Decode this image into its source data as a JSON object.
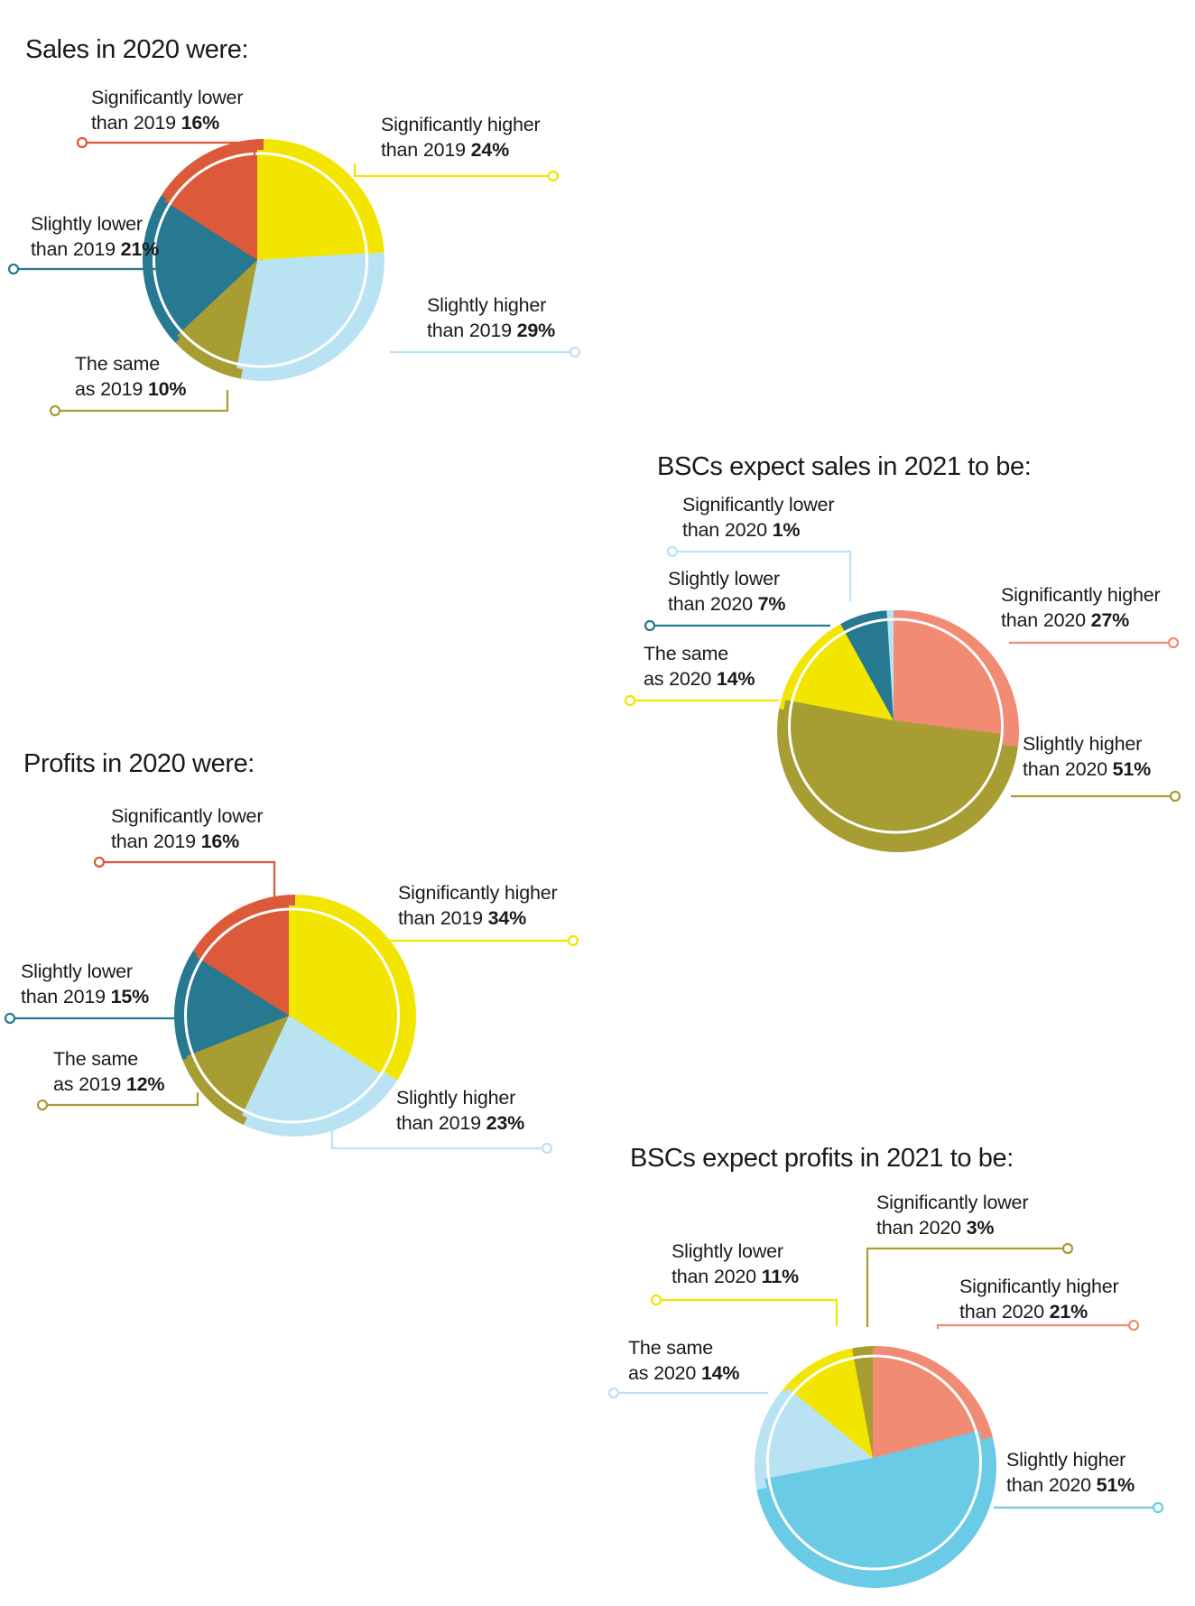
{
  "colors": {
    "red": "#dc5939",
    "salmon": "#f28b73",
    "dark_teal": "#277891",
    "olive": "#a89d33",
    "yellow": "#f2e600",
    "light_blue": "#b9e3f3",
    "sky_blue": "#69cbe5",
    "white": "#ffffff"
  },
  "chart_data": [
    {
      "type": "pie",
      "title": "Sales in 2020 were:",
      "slices": [
        {
          "line1": "Significantly higher",
          "line2_prefix": "than 2019",
          "value": 24,
          "pct_label": "24%",
          "color": "#f2e600"
        },
        {
          "line1": "Slightly higher",
          "line2_prefix": "than 2019",
          "value": 29,
          "pct_label": "29%",
          "color": "#b9e3f3"
        },
        {
          "line1": "The same",
          "line2_prefix": "as 2019",
          "value": 10,
          "pct_label": "10%",
          "color": "#a89d33"
        },
        {
          "line1": "Slightly lower",
          "line2_prefix": "than 2019",
          "value": 21,
          "pct_label": "21%",
          "color": "#277891"
        },
        {
          "line1": "Significantly lower",
          "line2_prefix": "than 2019",
          "value": 16,
          "pct_label": "16%",
          "color": "#dc5939"
        }
      ]
    },
    {
      "type": "pie",
      "title": "BSCs expect sales in 2021 to be:",
      "slices": [
        {
          "line1": "Significantly higher",
          "line2_prefix": "than 2020",
          "value": 27,
          "pct_label": "27%",
          "color": "#f28b73"
        },
        {
          "line1": "Slightly higher",
          "line2_prefix": "than 2020",
          "value": 51,
          "pct_label": "51%",
          "color": "#a89d33"
        },
        {
          "line1": "The same",
          "line2_prefix": "as 2020",
          "value": 14,
          "pct_label": "14%",
          "color": "#f2e600"
        },
        {
          "line1": "Slightly lower",
          "line2_prefix": "than 2020",
          "value": 7,
          "pct_label": "7%",
          "color": "#277891"
        },
        {
          "line1": "Significantly lower",
          "line2_prefix": "than 2020",
          "value": 1,
          "pct_label": "1%",
          "color": "#b9e3f3"
        }
      ]
    },
    {
      "type": "pie",
      "title": "Profits in 2020 were:",
      "slices": [
        {
          "line1": "Significantly higher",
          "line2_prefix": "than 2019",
          "value": 34,
          "pct_label": "34%",
          "color": "#f2e600"
        },
        {
          "line1": "Slightly higher",
          "line2_prefix": "than 2019",
          "value": 23,
          "pct_label": "23%",
          "color": "#b9e3f3"
        },
        {
          "line1": "The same",
          "line2_prefix": "as 2019",
          "value": 12,
          "pct_label": "12%",
          "color": "#a89d33"
        },
        {
          "line1": "Slightly lower",
          "line2_prefix": "than 2019",
          "value": 15,
          "pct_label": "15%",
          "color": "#277891"
        },
        {
          "line1": "Significantly lower",
          "line2_prefix": "than 2019",
          "value": 16,
          "pct_label": "16%",
          "color": "#dc5939"
        }
      ]
    },
    {
      "type": "pie",
      "title": "BSCs expect profits in 2021 to be:",
      "slices": [
        {
          "line1": "Significantly higher",
          "line2_prefix": "than 2020",
          "value": 21,
          "pct_label": "21%",
          "color": "#f28b73"
        },
        {
          "line1": "Slightly higher",
          "line2_prefix": "than 2020",
          "value": 51,
          "pct_label": "51%",
          "color": "#69cbe5"
        },
        {
          "line1": "The same",
          "line2_prefix": "as 2020",
          "value": 14,
          "pct_label": "14%",
          "color": "#b9e3f3"
        },
        {
          "line1": "Slightly lower",
          "line2_prefix": "than 2020",
          "value": 11,
          "pct_label": "11%",
          "color": "#f2e600"
        },
        {
          "line1": "Significantly lower",
          "line2_prefix": "than 2020",
          "value": 3,
          "pct_label": "3%",
          "color": "#a89d33"
        }
      ]
    }
  ]
}
